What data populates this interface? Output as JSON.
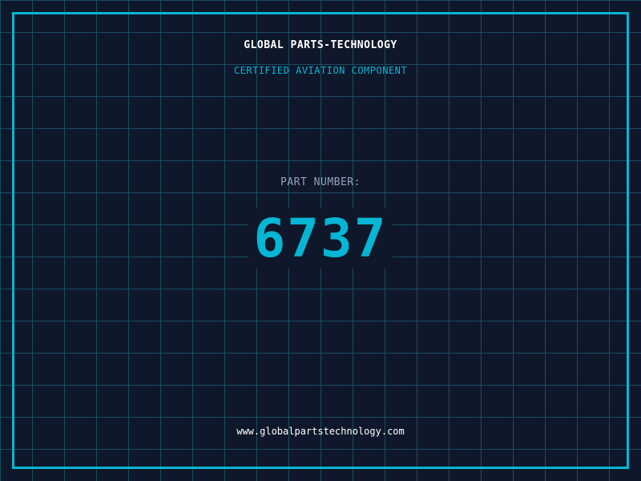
{
  "header": {
    "brand": "GLOBAL PARTS-TECHNOLOGY",
    "subtitle": "CERTIFIED AVIATION COMPONENT"
  },
  "part": {
    "label": "PART NUMBER:",
    "number": "6737"
  },
  "footer": {
    "url": "www.globalpartstechnology.com"
  },
  "colors": {
    "background": "#0f172a",
    "accent": "#06b6d4",
    "grid": "#164e63",
    "label": "#94a3b8"
  }
}
